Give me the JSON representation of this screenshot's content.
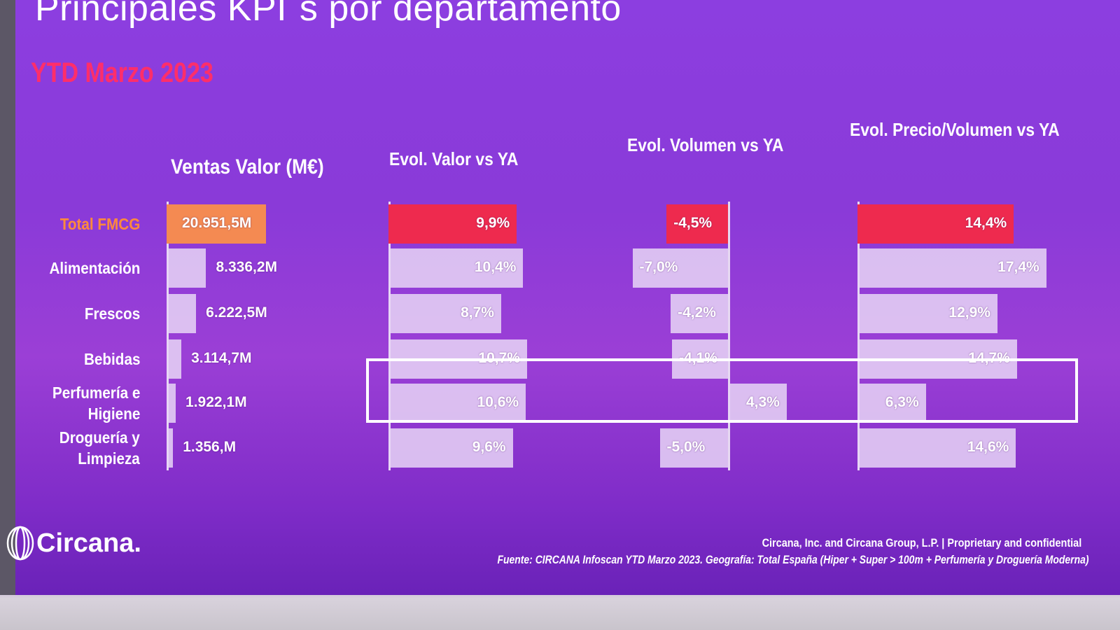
{
  "header": {
    "title": "Principales KPI´s por departamento",
    "subtitle": "YTD Marzo 2023"
  },
  "chart_data": {
    "type": "bar",
    "title": "Principales KPI´s por departamento",
    "subtitle": "YTD Marzo 2023",
    "categories": [
      "Total FMCG",
      "Alimentación",
      "Frescos",
      "Bebidas",
      "Perfumería e Higiene",
      "Droguería y Limpieza"
    ],
    "category_labels": [
      [
        "Total FMCG"
      ],
      [
        "Alimentación"
      ],
      [
        "Frescos"
      ],
      [
        "Bebidas"
      ],
      [
        "Perfumería e",
        "Higiene"
      ],
      [
        "Droguería y",
        "Limpieza"
      ]
    ],
    "highlighted_category": "Perfumería e Higiene",
    "series": [
      {
        "name": "Ventas Valor (M€)",
        "values": [
          20951.5,
          8336.2,
          6222.5,
          3114.7,
          1922.1,
          1356
        ],
        "labels": [
          "20.951,5M",
          "8.336,2M",
          "6.222,5M",
          "3.114,7M",
          "1.922,1M",
          "1.356,M"
        ]
      },
      {
        "name": "Evol. Valor vs YA",
        "values": [
          9.9,
          10.4,
          8.7,
          10.7,
          10.6,
          9.6
        ],
        "labels": [
          "9,9%",
          "10,4%",
          "8,7%",
          "10,7%",
          "10,6%",
          "9,6%"
        ]
      },
      {
        "name": "Evol. Volumen vs YA",
        "values": [
          -4.5,
          -7.0,
          -4.2,
          -4.1,
          4.3,
          -5.0
        ],
        "labels": [
          "-4,5%",
          "-7,0%",
          "-4,2%",
          "-4,1%",
          "4,3%",
          "-5,0%"
        ]
      },
      {
        "name": "Evol. Precio/Volumen vs YA",
        "values": [
          14.4,
          17.4,
          12.9,
          14.7,
          6.3,
          14.6
        ],
        "labels": [
          "14,4%",
          "17,4%",
          "12,9%",
          "14,7%",
          "6,3%",
          "14,6%"
        ]
      }
    ],
    "colors": {
      "total_sales": "#f48a52",
      "total_kpi": "#ee2a4e",
      "bars": "#e8d6f6",
      "total_label": "#ff8a3c"
    }
  },
  "footer": {
    "logo": "Circana.",
    "legal": "Circana, Inc. and Circana Group, L.P. |  Proprietary and confidential",
    "source": "Fuente: CIRCANA Infoscan YTD Marzo 2023.  Geografía: Total España (Hiper + Super > 100m + Perfumería y Droguería Moderna)"
  }
}
